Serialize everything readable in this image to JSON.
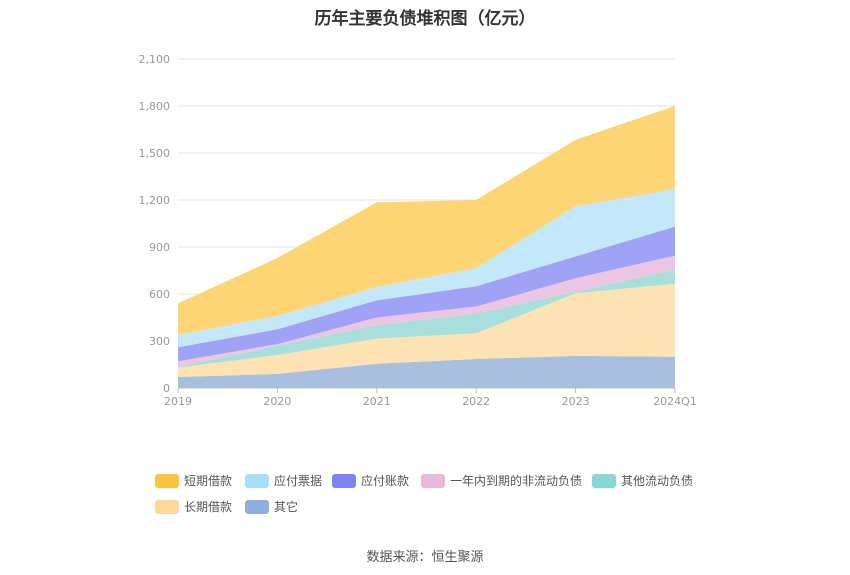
{
  "title": "历年主要负债堆积图（亿元）",
  "source": "数据来源：恒生聚源",
  "chart_data": {
    "type": "area",
    "stacked": true,
    "title": "历年主要负债堆积图（亿元）",
    "categories": [
      "2019",
      "2020",
      "2021",
      "2022",
      "2023",
      "2024Q1"
    ],
    "ylim": [
      0,
      2100
    ],
    "yticks": [
      0,
      300,
      600,
      900,
      1200,
      1500,
      1800,
      2100
    ],
    "ytick_labels": [
      "0",
      "300",
      "600",
      "900",
      "1,200",
      "1,500",
      "1,800",
      "2,100"
    ],
    "grid": true,
    "legend_position": "bottom",
    "series": [
      {
        "name": "其它",
        "color": "#a9bfe0",
        "legend_color": "#8fb0dc",
        "values": [
          70,
          90,
          155,
          185,
          205,
          200
        ]
      },
      {
        "name": "长期借款",
        "color": "#fde3b3",
        "legend_color": "#fdd79a",
        "values": [
          60,
          120,
          160,
          165,
          400,
          465
        ]
      },
      {
        "name": "其他流动负债",
        "color": "#a6dfdb",
        "legend_color": "#8ad8d4",
        "values": [
          5,
          60,
          85,
          125,
          10,
          90
        ]
      },
      {
        "name": "一年内到期的非流动负债",
        "color": "#ecc5e2",
        "legend_color": "#eab8dd",
        "values": [
          35,
          10,
          50,
          45,
          85,
          90
        ]
      },
      {
        "name": "应付账款",
        "color": "#a0a3f5",
        "legend_color": "#7f83f0",
        "values": [
          90,
          95,
          110,
          130,
          140,
          185
        ]
      },
      {
        "name": "应付票据",
        "color": "#c3e8fa",
        "legend_color": "#a8def8",
        "values": [
          80,
          85,
          85,
          115,
          320,
          240
        ]
      },
      {
        "name": "短期借款",
        "color": "#fdd575",
        "legend_color": "#fcc440",
        "values": [
          200,
          370,
          540,
          435,
          425,
          530
        ]
      }
    ]
  }
}
